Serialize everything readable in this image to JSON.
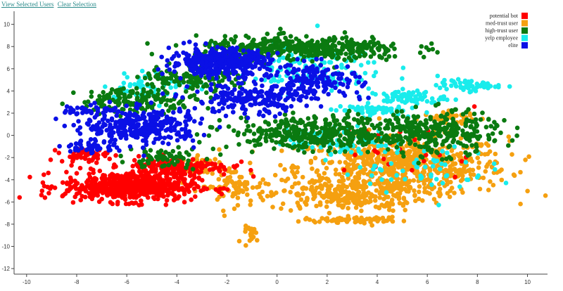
{
  "links": {
    "view_selected": "View Selected Users",
    "clear_selection": "Clear Selection"
  },
  "chart_data": {
    "type": "scatter",
    "title": "",
    "xlabel": "",
    "ylabel": "",
    "xlim": [
      -10.5,
      10.8
    ],
    "ylim": [
      -12.5,
      10.8
    ],
    "x_ticks": [
      -10,
      -8,
      -6,
      -4,
      -2,
      0,
      2,
      4,
      6,
      8,
      10
    ],
    "y_ticks": [
      -12,
      -10,
      -8,
      -6,
      -4,
      -2,
      0,
      2,
      4,
      6,
      8,
      10
    ],
    "legend_position": "top-right",
    "grid": false,
    "series": [
      {
        "name": "potential bot",
        "color": "#ff0000",
        "clusters": [
          {
            "cx": -5.9,
            "cy": -4.6,
            "sx": 2.2,
            "sy": 1.1,
            "n": 620
          },
          {
            "cx": -4.0,
            "cy": -2.8,
            "sx": 1.8,
            "sy": 0.7,
            "n": 180
          },
          {
            "cx": -7.7,
            "cy": -1.8,
            "sx": 0.8,
            "sy": 0.5,
            "n": 50
          },
          {
            "cx": 5.5,
            "cy": -1.5,
            "sx": 2.5,
            "sy": 2.5,
            "n": 25
          }
        ]
      },
      {
        "name": "med-trust user",
        "color": "#f5a010",
        "clusters": [
          {
            "cx": 5.0,
            "cy": -2.8,
            "sx": 3.5,
            "sy": 2.2,
            "n": 650
          },
          {
            "cx": 2.8,
            "cy": -5.4,
            "sx": 2.6,
            "sy": 1.2,
            "n": 250
          },
          {
            "cx": 3.0,
            "cy": -7.6,
            "sx": 1.6,
            "sy": 0.2,
            "n": 70
          },
          {
            "cx": -1.8,
            "cy": -4.6,
            "sx": 1.1,
            "sy": 1.4,
            "n": 80
          },
          {
            "cx": -1.0,
            "cy": -8.9,
            "sx": 0.3,
            "sy": 0.6,
            "n": 20
          },
          {
            "cx": -3.0,
            "cy": -2.6,
            "sx": 0.7,
            "sy": 0.6,
            "n": 40
          },
          {
            "cx": 7.0,
            "cy": 1.5,
            "sx": 1.0,
            "sy": 0.5,
            "n": 40
          }
        ]
      },
      {
        "name": "high-trust user",
        "color": "#0a7a10",
        "clusters": [
          {
            "cx": 1.0,
            "cy": 7.8,
            "sx": 3.5,
            "sy": 0.9,
            "n": 420
          },
          {
            "cx": 1.5,
            "cy": 0.2,
            "sx": 2.8,
            "sy": 1.2,
            "n": 360
          },
          {
            "cx": 6.2,
            "cy": 0.2,
            "sx": 2.2,
            "sy": 1.6,
            "n": 300
          },
          {
            "cx": -5.5,
            "cy": 3.2,
            "sx": 2.0,
            "sy": 0.9,
            "n": 160
          },
          {
            "cx": -3.5,
            "cy": 5.2,
            "sx": 1.6,
            "sy": 0.9,
            "n": 120
          },
          {
            "cx": -4.5,
            "cy": -2.0,
            "sx": 1.2,
            "sy": 0.8,
            "n": 60
          }
        ]
      },
      {
        "name": "yelp employee",
        "color": "#19ecec",
        "clusters": [
          {
            "cx": 5.2,
            "cy": 3.4,
            "sx": 1.3,
            "sy": 0.5,
            "n": 70
          },
          {
            "cx": 7.6,
            "cy": 4.5,
            "sx": 1.0,
            "sy": 0.4,
            "n": 60
          },
          {
            "cx": 3.6,
            "cy": 2.3,
            "sx": 1.2,
            "sy": 0.4,
            "n": 60
          },
          {
            "cx": 1.0,
            "cy": 6.0,
            "sx": 2.8,
            "sy": 1.8,
            "n": 140
          },
          {
            "cx": 2.5,
            "cy": -0.5,
            "sx": 1.8,
            "sy": 1.0,
            "n": 80
          },
          {
            "cx": -4.8,
            "cy": 4.5,
            "sx": 1.8,
            "sy": 1.0,
            "n": 60
          },
          {
            "cx": 5.5,
            "cy": -3.0,
            "sx": 2.5,
            "sy": 1.8,
            "n": 60
          }
        ]
      },
      {
        "name": "elite",
        "color": "#0a10e6",
        "clusters": [
          {
            "cx": -2.3,
            "cy": 6.6,
            "sx": 1.6,
            "sy": 1.0,
            "n": 420
          },
          {
            "cx": -5.4,
            "cy": 0.8,
            "sx": 1.9,
            "sy": 1.3,
            "n": 320
          },
          {
            "cx": -1.0,
            "cy": 3.2,
            "sx": 2.0,
            "sy": 1.2,
            "n": 200
          },
          {
            "cx": 1.5,
            "cy": 5.0,
            "sx": 1.5,
            "sy": 1.3,
            "n": 160
          },
          {
            "cx": -7.5,
            "cy": 2.3,
            "sx": 0.9,
            "sy": 0.4,
            "n": 40
          },
          {
            "cx": -7.5,
            "cy": -1.0,
            "sx": 1.0,
            "sy": 0.5,
            "n": 40
          }
        ]
      }
    ]
  }
}
